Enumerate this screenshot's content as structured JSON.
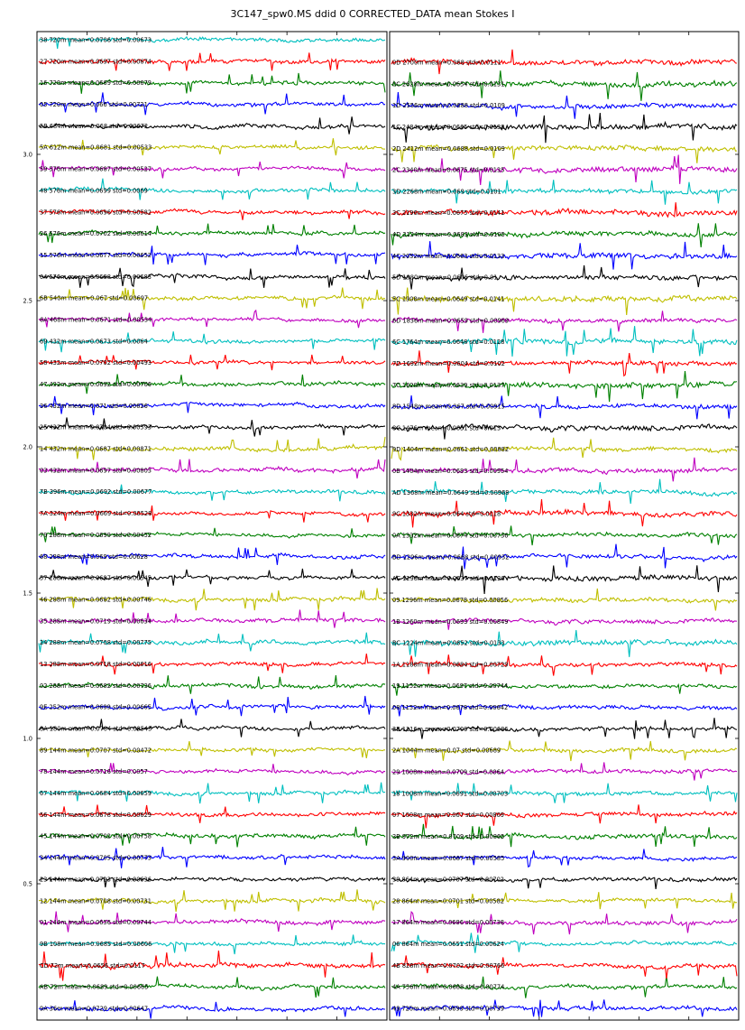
{
  "title": "3C147_spw0.MS ddid 0 CORRECTED_DATA mean Stokes I",
  "chart_data": {
    "type": "line",
    "title": "3C147_spw0.MS ddid 0 CORRECTED_DATA mean Stokes I",
    "yticks": [
      "0.5",
      "1.0",
      "1.5",
      "2.0",
      "2.5",
      "3.0"
    ],
    "color_cycle": [
      "#0000ff",
      "#008000",
      "#ff0000",
      "#00bfbf",
      "#bf00bf",
      "#bfbf00",
      "#000000"
    ],
    "panels": [
      {
        "name": "left",
        "series": [
          {
            "label": "9A 36m mean=0.0729 std=0.00647"
          },
          {
            "label": "AB 72m mean=0.0689 std=0.00665"
          },
          {
            "label": "CD 72m mean=0.0656 std=0.0117"
          },
          {
            "label": "9B 108m mean=0.0685 std=0.00606"
          },
          {
            "label": "01 144m mean=0.0656 std=0.00744"
          },
          {
            "label": "12 144m mean=0.0708 std=0.00731"
          },
          {
            "label": "23 144m mean=0.0723 std=0.00636"
          },
          {
            "label": "34 144m mean=0.0705 std=0.00773"
          },
          {
            "label": "45 144m mean=0.0702 std=0.00758"
          },
          {
            "label": "56 144m mean=0.0678 std=0.00629"
          },
          {
            "label": "67 144m mean=0.0684 std=0.00659"
          },
          {
            "label": "78 144m mean=0.0716 std=0.0057"
          },
          {
            "label": "89 144m mean=0.0707 std=0.00472"
          },
          {
            "label": "8A 180m mean=0.0704 std=0.00545"
          },
          {
            "label": "9E 252m mean=0.0699 std=0.00665"
          },
          {
            "label": "02 288m mean=0.0682 std=0.00736"
          },
          {
            "label": "13 288m mean=0.0718 std=0.00616"
          },
          {
            "label": "24 288m mean=0.0708 std=0.00775"
          },
          {
            "label": "35 288m mean=0.0719 std=0.00634"
          },
          {
            "label": "46 288m mean=0.0682 std=0.00746"
          },
          {
            "label": "57 288m mean=0.0697 std=0.00545"
          },
          {
            "label": "68 288m mean=0.069 std=0.00628"
          },
          {
            "label": "79 288m mean=0.0699 std=0.00452"
          },
          {
            "label": "7A 324m mean=0.0669 std=0.00528"
          },
          {
            "label": "7B 396m mean=0.0692 std=0.00677"
          },
          {
            "label": "03 432m mean=0.0697 std=0.00803"
          },
          {
            "label": "14 432m mean=0.0687 std=0.00871"
          },
          {
            "label": "25 432m mean=0.0704 std=0.00593"
          },
          {
            "label": "36 432m mean=0.071 std=0.00626"
          },
          {
            "label": "47 432m mean=0.0692 std=0.00706"
          },
          {
            "label": "58 432m mean=0.0702 std=0.00493"
          },
          {
            "label": "69 432m mean=0.0673 std=0.0064"
          },
          {
            "label": "6A 468m mean=0.0671 std=0.00534"
          },
          {
            "label": "6B 540m mean=0.067 std=0.00697"
          },
          {
            "label": "04 576m mean=0.0688 std=0.00683"
          },
          {
            "label": "15 576m mean=0.0677 std=0.00652"
          },
          {
            "label": "26 576m mean=0.0702 std=0.00614"
          },
          {
            "label": "37 576m mean=0.0696 std=0.00582"
          },
          {
            "label": "48 576m mean=0.0699 std=0.0069"
          },
          {
            "label": "59 576m mean=0.0687 std=0.00527"
          },
          {
            "label": "5A 612m mean=0.0681 std=0.00533"
          },
          {
            "label": "5B 684m mean=0.068 std=0.00672"
          },
          {
            "label": "05 720m mean=0.066 std=0.00721"
          },
          {
            "label": "16 720m mean=0.0669 std=0.00679"
          },
          {
            "label": "27 720m mean=0.0697 std=0.00674"
          },
          {
            "label": "38 720m mean=0.0706 std=0.00673"
          }
        ]
      },
      {
        "name": "right",
        "series": [
          {
            "label": "49 720m mean=0.0699 std=0.00739"
          },
          {
            "label": "4A 756m mean=0.0688 std=0.00774"
          },
          {
            "label": "4B 828m mean=0.0702 std=0.00766"
          },
          {
            "label": "06 864m mean=0.0651 std=0.00624"
          },
          {
            "label": "17 864m mean=0.0686 std=0.00738"
          },
          {
            "label": "28 864m mean=0.0701 std=0.00582"
          },
          {
            "label": "39 864m mean=0.0707 std=0.00702"
          },
          {
            "label": "3A 900m mean=0.0687 std=0.00585"
          },
          {
            "label": "3B 972m mean=0.0709 std=0.00865"
          },
          {
            "label": "07 1008m mean=0.067 std=0.00809"
          },
          {
            "label": "18 1008m mean=0.0691 std=0.00703"
          },
          {
            "label": "29 1008m mean=0.0709 std=0.0064"
          },
          {
            "label": "2A 1044m mean=0.07 std=0.00689"
          },
          {
            "label": "2B 1116m mean=0.0709 std=0.00686"
          },
          {
            "label": "08 1152m mean=0.0678 std=0.00642"
          },
          {
            "label": "19 1152m mean=0.0697 std=0.00744"
          },
          {
            "label": "1A 1188m mean=0.0684 std=0.00729"
          },
          {
            "label": "BC 1224m mean=0.0652 std=0.0133"
          },
          {
            "label": "1B 1260m mean=0.0693 std=0.00849"
          },
          {
            "label": "09 1296m mean=0.0678 std=0.00856"
          },
          {
            "label": "AC 1296m mean=0.0637 std=0.0126"
          },
          {
            "label": "BD 1296m mean=0.0668 std=0.00932"
          },
          {
            "label": "0A 1332m mean=0.0674 std=0.00736"
          },
          {
            "label": "9C 1332m mean=0.064 std=0.0118"
          },
          {
            "label": "AD 1368m mean=0.0649 std=0.00968"
          },
          {
            "label": "0B 1404m mean=0.0683 std=0.00954"
          },
          {
            "label": "9D 1404m mean=0.0661 std=0.00882"
          },
          {
            "label": "8C 1476m mean=0.0651 std=0.013"
          },
          {
            "label": "8D 1548m mean=0.067 std=0.00915"
          },
          {
            "label": "7C 1620m mean=0.0639 std=0.0137"
          },
          {
            "label": "7D 1692m mean=0.0604 std=0.0102"
          },
          {
            "label": "6C 1764m mean=0.0648 std=0.0128"
          },
          {
            "label": "6D 1836m mean=0.0659 std=0.00969"
          },
          {
            "label": "5C 1908m mean=0.0649 std=0.0141"
          },
          {
            "label": "5D 1980m mean=0.0606 std=0.01"
          },
          {
            "label": "4C 2052m mean=0.0663 std=0.0133"
          },
          {
            "label": "4D 2124m mean=0.0683 std=0.0105"
          },
          {
            "label": "3C 2196m mean=0.0675 std=0.0141"
          },
          {
            "label": "3D 2268m mean=0.069 std=0.0101"
          },
          {
            "label": "2C 2340m mean=0.0675 std=0.0135"
          },
          {
            "label": "2D 2412m mean=0.0688 std=0.0109"
          },
          {
            "label": "1C 2484m mean=0.0665 std=0.0138"
          },
          {
            "label": "1D 2556m mean=0.0688 std=0.0109"
          },
          {
            "label": "0C 2628m mean=0.0654 std=0.0131"
          },
          {
            "label": "0D 2700m mean=0.068 std=0.0111"
          }
        ]
      }
    ]
  }
}
